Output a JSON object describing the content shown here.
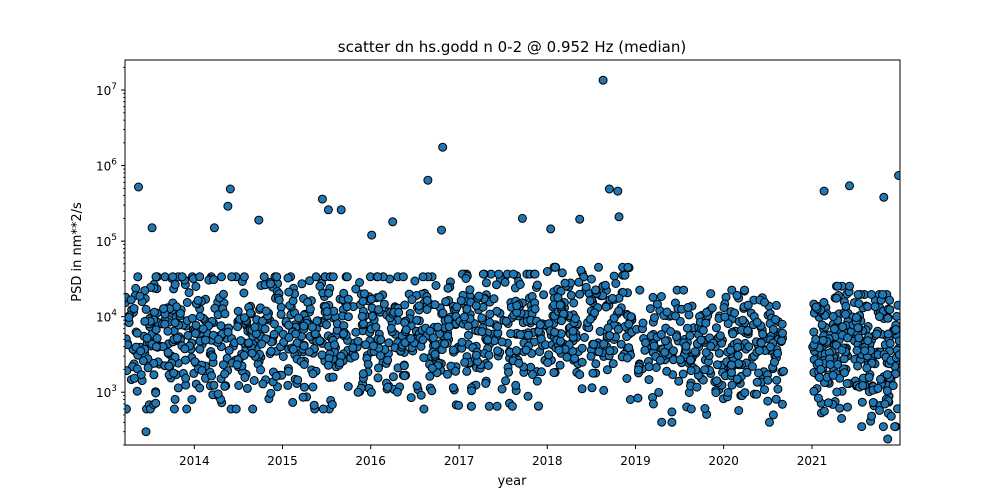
{
  "chart_data": {
    "type": "scatter",
    "title": "scatter dn hs.godd n 0-2 @ 0.952 Hz (median)",
    "xlabel": "year",
    "ylabel": "PSD in nm**2/s",
    "yscale": "log",
    "xlim": [
      "2013-03-20",
      "2021-12-31"
    ],
    "ylim": [
      200,
      25000000
    ],
    "x_ticks": [
      "2014",
      "2015",
      "2016",
      "2017",
      "2018",
      "2019",
      "2020",
      "2021"
    ],
    "y_ticks": [
      {
        "value": 1000,
        "base": "10",
        "exp": "3"
      },
      {
        "value": 10000,
        "base": "10",
        "exp": "4"
      },
      {
        "value": 100000,
        "base": "10",
        "exp": "5"
      },
      {
        "value": 1000000,
        "base": "10",
        "exp": "6"
      },
      {
        "value": 10000000,
        "base": "10",
        "exp": "7"
      }
    ],
    "grid": false,
    "legend": "none",
    "marker_color": "#1f77b4",
    "marker_edge_color": "#000000",
    "outliers": [
      {
        "x": "2013-05-15",
        "y": 520000
      },
      {
        "x": "2013-06-15",
        "y": 300
      },
      {
        "x": "2013-07-10",
        "y": 150000
      },
      {
        "x": "2014-05-30",
        "y": 490000
      },
      {
        "x": "2014-05-20",
        "y": 290000
      },
      {
        "x": "2014-03-25",
        "y": 150000
      },
      {
        "x": "2014-09-25",
        "y": 190000
      },
      {
        "x": "2015-06-15",
        "y": 360000
      },
      {
        "x": "2015-07-10",
        "y": 260000
      },
      {
        "x": "2015-09-01",
        "y": 260000
      },
      {
        "x": "2016-01-05",
        "y": 120000
      },
      {
        "x": "2016-04-01",
        "y": 180000
      },
      {
        "x": "2016-08-25",
        "y": 640000
      },
      {
        "x": "2016-10-25",
        "y": 1750000
      },
      {
        "x": "2016-10-20",
        "y": 140000
      },
      {
        "x": "2017-09-20",
        "y": 200000
      },
      {
        "x": "2018-01-15",
        "y": 145000
      },
      {
        "x": "2018-05-15",
        "y": 195000
      },
      {
        "x": "2018-08-20",
        "y": 13500000
      },
      {
        "x": "2018-09-15",
        "y": 490000
      },
      {
        "x": "2018-10-20",
        "y": 460000
      },
      {
        "x": "2018-10-25",
        "y": 210000
      },
      {
        "x": "2019-08-20",
        "y": 600
      },
      {
        "x": "2020-07-25",
        "y": 500
      },
      {
        "x": "2021-02-20",
        "y": 460000
      },
      {
        "x": "2021-06-05",
        "y": 540000
      },
      {
        "x": "2021-10-25",
        "y": 380000
      },
      {
        "x": "2021-12-25",
        "y": 740000
      },
      {
        "x": "2021-11-10",
        "y": 240
      }
    ],
    "clusters": [
      {
        "start": "2013-03-20",
        "end": "2013-12-31",
        "median": 6000,
        "spread": 0.45,
        "count": 170
      },
      {
        "start": "2014-01-01",
        "end": "2014-12-31",
        "median": 6000,
        "spread": 0.45,
        "count": 210
      },
      {
        "start": "2015-01-01",
        "end": "2015-12-31",
        "median": 6000,
        "spread": 0.45,
        "count": 210
      },
      {
        "start": "2016-01-01",
        "end": "2016-12-31",
        "median": 6000,
        "spread": 0.45,
        "count": 200
      },
      {
        "start": "2017-01-01",
        "end": "2017-12-31",
        "median": 6500,
        "spread": 0.42,
        "count": 200
      },
      {
        "start": "2018-01-01",
        "end": "2018-12-31",
        "median": 8000,
        "spread": 0.4,
        "count": 200
      },
      {
        "start": "2019-01-01",
        "end": "2019-12-31",
        "median": 4000,
        "spread": 0.38,
        "count": 170
      },
      {
        "start": "2020-01-01",
        "end": "2020-09-05",
        "median": 4000,
        "spread": 0.4,
        "count": 140
      },
      {
        "start": "2021-01-01",
        "end": "2021-06-30",
        "median": 4500,
        "spread": 0.4,
        "count": 140
      },
      {
        "start": "2021-07-01",
        "end": "2021-12-31",
        "median": 3500,
        "spread": 0.45,
        "count": 150
      }
    ]
  }
}
